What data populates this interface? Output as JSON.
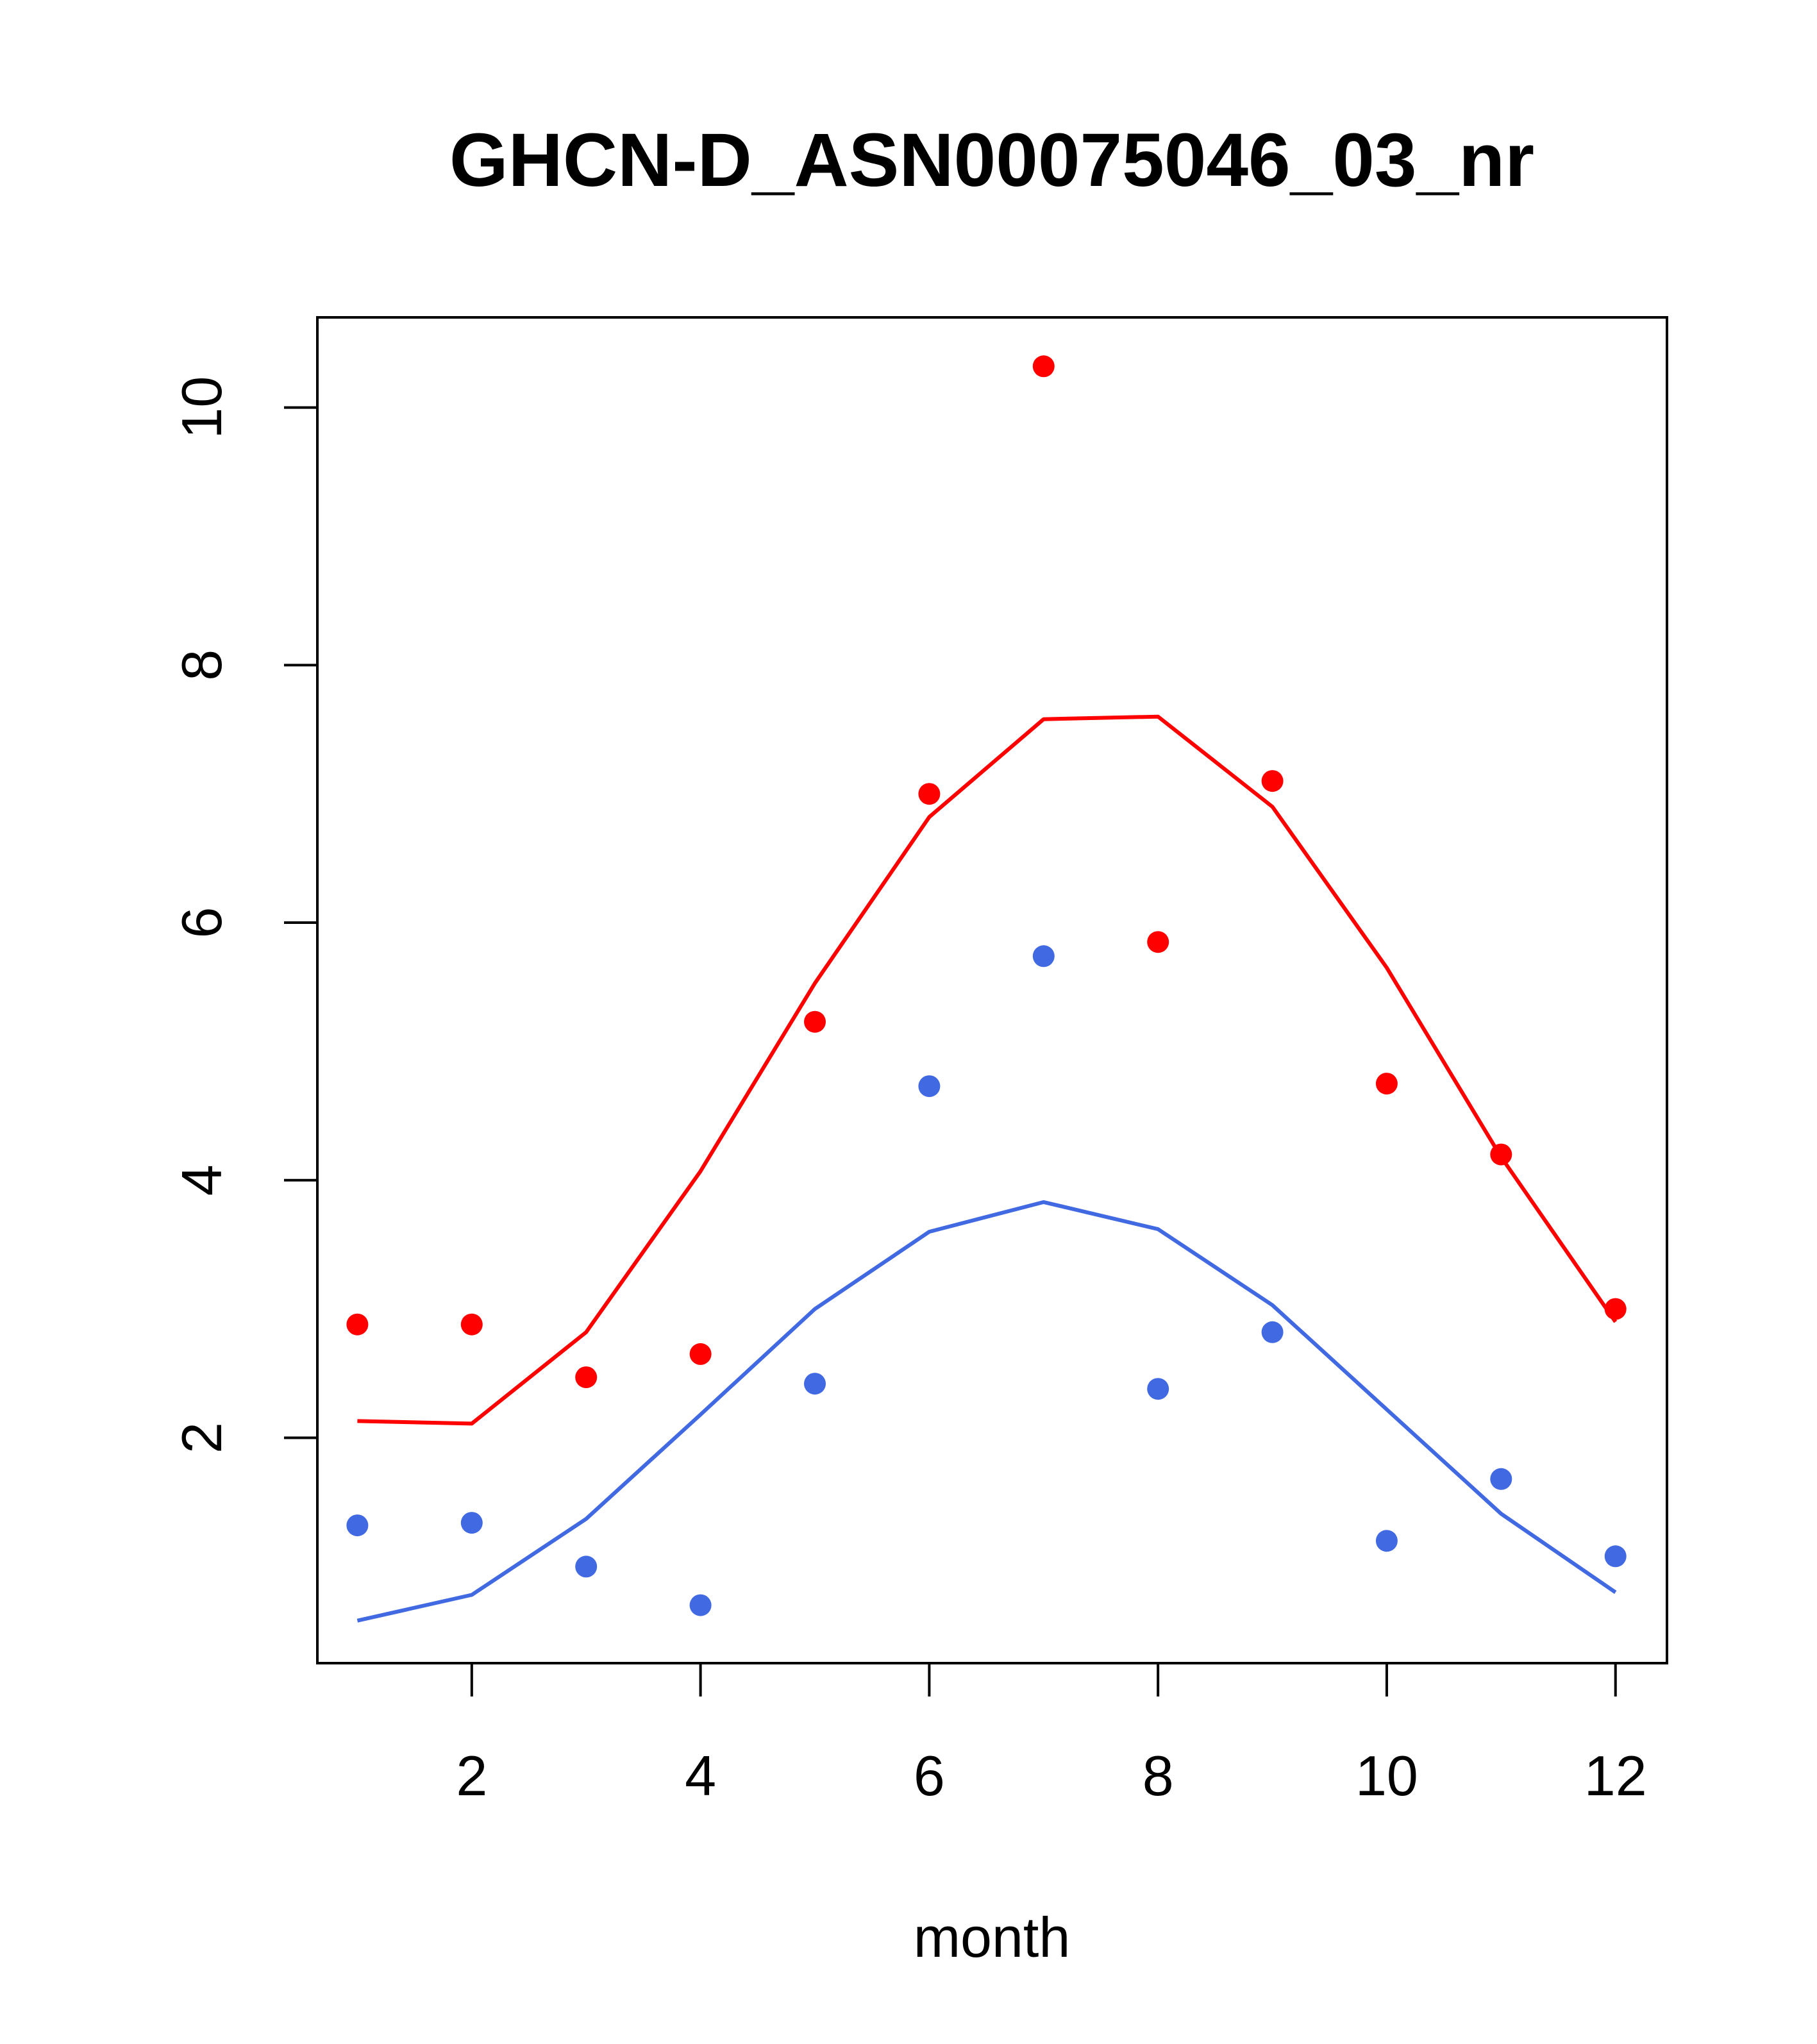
{
  "chart_data": {
    "type": "scatter",
    "title": "GHCN-D_ASN00075046_03_nr",
    "xlabel": "month",
    "ylabel": "",
    "xlim": [
      0.65,
      12.45
    ],
    "ylim": [
      0.25,
      10.7
    ],
    "x_ticks": [
      2,
      4,
      6,
      8,
      10,
      12
    ],
    "y_ticks": [
      2,
      4,
      6,
      8,
      10
    ],
    "grid": false,
    "legend": "none",
    "x": [
      1,
      2,
      3,
      4,
      5,
      6,
      7,
      8,
      9,
      10,
      11,
      12
    ],
    "series": [
      {
        "color": "#ff0000",
        "points": [
          2.88,
          2.88,
          2.47,
          2.65,
          5.23,
          7.0,
          10.32,
          5.85,
          7.1,
          4.75,
          4.2,
          3.0
        ],
        "line": [
          2.13,
          2.11,
          2.82,
          4.07,
          5.53,
          6.82,
          7.58,
          7.6,
          6.9,
          5.65,
          4.18,
          2.9
        ]
      },
      {
        "color": "#4169e1",
        "points": [
          1.32,
          1.34,
          1.0,
          0.7,
          2.42,
          4.73,
          5.74,
          2.38,
          2.82,
          1.2,
          1.68,
          1.08
        ],
        "line": [
          0.58,
          0.78,
          1.37,
          2.18,
          3.0,
          3.6,
          3.83,
          3.62,
          3.03,
          2.22,
          1.41,
          0.8
        ]
      }
    ]
  }
}
